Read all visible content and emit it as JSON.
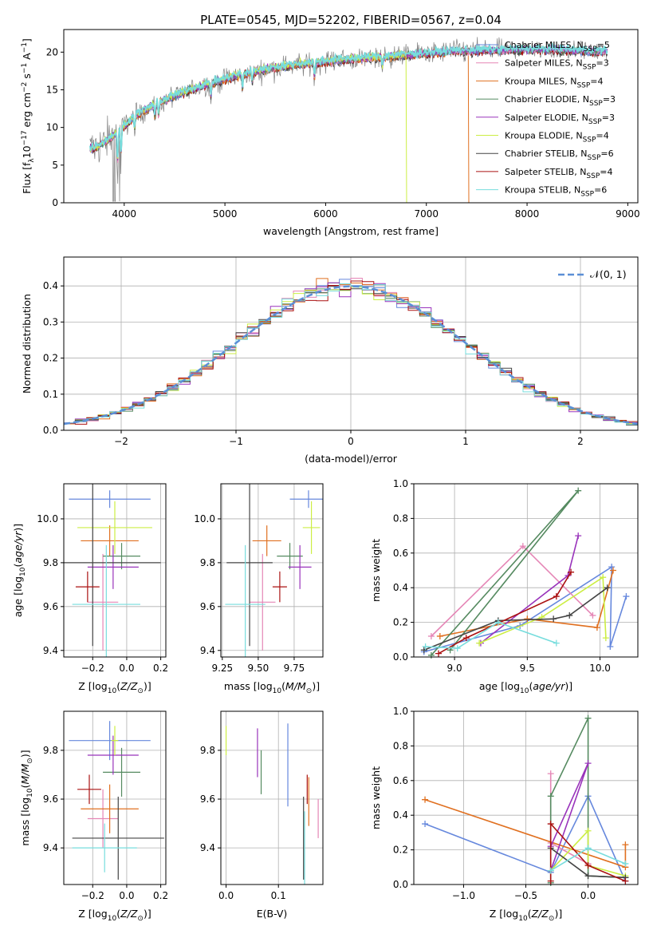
{
  "title": "PLATE=0545, MJD=52202, FIBERID=0567, z=0.04",
  "colors": {
    "Chabrier MILES": "#6688dd",
    "Salpeter MILES": "#e586b6",
    "Kroupa MILES": "#e07020",
    "Chabrier ELODIE": "#558a60",
    "Salpeter ELODIE": "#9933bb",
    "Kroupa ELODIE": "#ccee44",
    "Chabrier STELIB": "#444444",
    "Salpeter STELIB": "#aa1111",
    "Kroupa STELIB": "#77dddd"
  },
  "chart_data": [
    {
      "id": "spectrum",
      "type": "line",
      "xlabel": "wavelength [Angstrom, rest frame]",
      "ylabel": "Flux [f_λ10^-17 erg cm^-2 s^-1 A^-1]",
      "xlim": [
        3400,
        9100
      ],
      "ylim": [
        0,
        23
      ],
      "xticks": [
        4000,
        5000,
        6000,
        7000,
        8000,
        9000
      ],
      "yticks": [
        0,
        5,
        10,
        15,
        20
      ],
      "grid": false,
      "legend_position": "right",
      "legend": [
        {
          "model": "Chabrier MILES",
          "nssp": 5
        },
        {
          "model": "Salpeter MILES",
          "nssp": 3
        },
        {
          "model": "Kroupa MILES",
          "nssp": 4
        },
        {
          "model": "Chabrier ELODIE",
          "nssp": 3
        },
        {
          "model": "Salpeter ELODIE",
          "nssp": 3
        },
        {
          "model": "Kroupa ELODIE",
          "nssp": 4
        },
        {
          "model": "Chabrier STELIB",
          "nssp": 6
        },
        {
          "model": "Salpeter STELIB",
          "nssp": 4
        },
        {
          "model": "Kroupa STELIB",
          "nssp": 6
        }
      ],
      "continuum": {
        "x": [
          3650,
          3800,
          3950,
          4100,
          4300,
          4500,
          4700,
          4900,
          5100,
          5300,
          5500,
          5700,
          5900,
          6100,
          6300,
          6500,
          6700,
          6900,
          7100,
          7300,
          7500,
          7700,
          7900,
          8100,
          8300,
          8500,
          8800
        ],
        "y": [
          7.0,
          8.0,
          9.5,
          11.5,
          13.0,
          14.2,
          15.2,
          16.0,
          16.8,
          17.4,
          17.9,
          18.3,
          18.6,
          18.9,
          19.1,
          19.3,
          19.5,
          19.7,
          19.9,
          20.1,
          20.2,
          20.2,
          20.3,
          20.3,
          20.3,
          20.2,
          20.1
        ]
      },
      "model_dropouts": [
        {
          "model": "Kroupa ELODIE",
          "x_from": 6800,
          "y": 0
        },
        {
          "model": "Kroupa MILES",
          "x_from": 7420,
          "y": 0
        }
      ]
    },
    {
      "id": "residuals",
      "type": "histogram",
      "xlabel": "(data-model)/error",
      "ylabel": "Normed distribution",
      "xlim": [
        -2.5,
        2.5
      ],
      "ylim": [
        0,
        0.48
      ],
      "xticks": [
        -2,
        -1,
        0,
        1,
        2
      ],
      "yticks": [
        0.0,
        0.1,
        0.2,
        0.3,
        0.4
      ],
      "grid": true,
      "legend_position": "top-right",
      "legend": [
        "𝒩(0, 1)"
      ],
      "bin_width": 0.1,
      "reference_curve": "normal(0,1)"
    },
    {
      "id": "age-vs-Z",
      "type": "errorbar",
      "xlabel": "Z [log10(Z/Z☉)]",
      "ylabel": "age  [log10(age/yr)]",
      "xlim": [
        -0.37,
        0.23
      ],
      "ylim": [
        9.37,
        10.16
      ],
      "xticks": [
        -0.2,
        0.0,
        0.2
      ],
      "yticks": [
        9.4,
        9.6,
        9.8,
        10.0
      ],
      "grid": true,
      "points": [
        {
          "model": "Chabrier MILES",
          "x": -0.1,
          "xerr": 0.24,
          "y": 10.09,
          "yerr": 0.04
        },
        {
          "model": "Salpeter MILES",
          "x": -0.14,
          "xerr": 0.09,
          "y": 9.62,
          "yerr": 0.22
        },
        {
          "model": "Kroupa MILES",
          "x": -0.1,
          "xerr": 0.17,
          "y": 9.9,
          "yerr": 0.07
        },
        {
          "model": "Chabrier ELODIE",
          "x": -0.03,
          "xerr": 0.11,
          "y": 9.83,
          "yerr": 0.06
        },
        {
          "model": "Salpeter ELODIE",
          "x": -0.08,
          "xerr": 0.15,
          "y": 9.78,
          "yerr": 0.1
        },
        {
          "model": "Kroupa ELODIE",
          "x": -0.07,
          "xerr": 0.22,
          "y": 9.96,
          "yerr": 0.12
        },
        {
          "model": "Chabrier STELIB",
          "x": -0.2,
          "xerr": 0.4,
          "y": 9.8,
          "yerr": 0.38
        },
        {
          "model": "Salpeter STELIB",
          "x": -0.23,
          "xerr": 0.07,
          "y": 9.69,
          "yerr": 0.07
        },
        {
          "model": "Kroupa STELIB",
          "x": -0.12,
          "xerr": 0.2,
          "y": 9.61,
          "yerr": 0.27
        }
      ]
    },
    {
      "id": "age-vs-mass",
      "type": "errorbar",
      "xlabel": "mass [log10(M/M☉)]",
      "xlim": [
        9.24,
        9.95
      ],
      "ylim": [
        9.37,
        10.16
      ],
      "xticks": [
        9.25,
        9.5,
        9.75
      ],
      "yticks": [
        9.4,
        9.6,
        9.8,
        10.0
      ],
      "grid": true,
      "points": [
        {
          "model": "Chabrier MILES",
          "x": 9.85,
          "xerr": 0.13,
          "y": 10.09,
          "yerr": 0.04
        },
        {
          "model": "Salpeter MILES",
          "x": 9.53,
          "xerr": 0.09,
          "y": 9.62,
          "yerr": 0.22
        },
        {
          "model": "Kroupa MILES",
          "x": 9.56,
          "xerr": 0.1,
          "y": 9.9,
          "yerr": 0.07
        },
        {
          "model": "Chabrier ELODIE",
          "x": 9.72,
          "xerr": 0.09,
          "y": 9.83,
          "yerr": 0.06
        },
        {
          "model": "Salpeter ELODIE",
          "x": 9.79,
          "xerr": 0.08,
          "y": 9.78,
          "yerr": 0.1
        },
        {
          "model": "Kroupa ELODIE",
          "x": 9.87,
          "xerr": 0.06,
          "y": 9.96,
          "yerr": 0.12
        },
        {
          "model": "Chabrier STELIB",
          "x": 9.44,
          "xerr": 0.16,
          "y": 9.8,
          "yerr": 0.38
        },
        {
          "model": "Salpeter STELIB",
          "x": 9.65,
          "xerr": 0.05,
          "y": 9.69,
          "yerr": 0.07
        },
        {
          "model": "Kroupa STELIB",
          "x": 9.41,
          "xerr": 0.14,
          "y": 9.61,
          "yerr": 0.27
        }
      ]
    },
    {
      "id": "massweight-vs-age",
      "type": "line",
      "xlabel": "age  [log10(age/yr)]",
      "ylabel": "mass weight",
      "xlim": [
        8.72,
        10.26
      ],
      "ylim": [
        0,
        1
      ],
      "xticks": [
        9.0,
        9.5,
        10.0
      ],
      "yticks": [
        0.0,
        0.2,
        0.4,
        0.6,
        0.8,
        1.0
      ],
      "grid": true,
      "series": [
        {
          "model": "Chabrier MILES",
          "x": [
            8.79,
            9.45,
            10.08,
            10.07,
            10.18
          ],
          "y": [
            0.03,
            0.18,
            0.52,
            0.06,
            0.35
          ]
        },
        {
          "model": "Salpeter MILES",
          "x": [
            8.84,
            9.47,
            9.95
          ],
          "y": [
            0.12,
            0.64,
            0.24
          ]
        },
        {
          "model": "Kroupa MILES",
          "x": [
            8.9,
            9.5,
            9.98,
            10.09
          ],
          "y": [
            0.12,
            0.22,
            0.17,
            0.5
          ]
        },
        {
          "model": "Chabrier ELODIE",
          "x": [
            8.84,
            9.85,
            8.97
          ],
          "y": [
            0.01,
            0.96,
            0.04
          ]
        },
        {
          "model": "Salpeter ELODIE",
          "x": [
            9.18,
            9.78,
            9.85
          ],
          "y": [
            0.08,
            0.47,
            0.7
          ]
        },
        {
          "model": "Kroupa ELODIE",
          "x": [
            9.17,
            9.6,
            10.02,
            10.04
          ],
          "y": [
            0.08,
            0.23,
            0.46,
            0.11
          ]
        },
        {
          "model": "Chabrier STELIB",
          "x": [
            8.79,
            9.3,
            9.68,
            9.79,
            10.05
          ],
          "y": [
            0.04,
            0.21,
            0.22,
            0.24,
            0.4
          ]
        },
        {
          "model": "Salpeter STELIB",
          "x": [
            8.89,
            9.08,
            9.7,
            9.8
          ],
          "y": [
            0.02,
            0.11,
            0.35,
            0.49
          ]
        },
        {
          "model": "Kroupa STELIB",
          "x": [
            8.8,
            9.02,
            9.3,
            9.7
          ],
          "y": [
            0.06,
            0.05,
            0.2,
            0.08
          ]
        }
      ]
    },
    {
      "id": "mass-vs-Z",
      "type": "errorbar",
      "xlabel": "Z [log10(Z/Z☉)]",
      "ylabel": "mass [log10(M/M☉)]",
      "xlim": [
        -0.37,
        0.23
      ],
      "ylim": [
        9.25,
        9.96
      ],
      "xticks": [
        -0.2,
        0.0,
        0.2
      ],
      "yticks": [
        9.4,
        9.6,
        9.8
      ],
      "grid": true,
      "points": [
        {
          "model": "Chabrier MILES",
          "x": -0.1,
          "xerr": 0.24,
          "y": 9.84,
          "yerr": 0.08
        },
        {
          "model": "Salpeter MILES",
          "x": -0.14,
          "xerr": 0.09,
          "y": 9.52,
          "yerr": 0.12
        },
        {
          "model": "Kroupa MILES",
          "x": -0.1,
          "xerr": 0.17,
          "y": 9.56,
          "yerr": 0.1
        },
        {
          "model": "Chabrier ELODIE",
          "x": -0.03,
          "xerr": 0.11,
          "y": 9.71,
          "yerr": 0.1
        },
        {
          "model": "Salpeter ELODIE",
          "x": -0.08,
          "xerr": 0.15,
          "y": 9.78,
          "yerr": 0.08
        },
        {
          "model": "Kroupa ELODIE",
          "x": -0.07,
          "xerr": 0.02,
          "y": 9.84,
          "yerr": 0.06
        },
        {
          "model": "Chabrier STELIB",
          "x": -0.05,
          "xerr": 0.27,
          "y": 9.44,
          "yerr": 0.17
        },
        {
          "model": "Salpeter STELIB",
          "x": -0.22,
          "xerr": 0.07,
          "y": 9.64,
          "yerr": 0.06
        },
        {
          "model": "Kroupa STELIB",
          "x": -0.13,
          "xerr": 0.19,
          "y": 9.4,
          "yerr": 0.1
        }
      ]
    },
    {
      "id": "mass-vs-EBV",
      "type": "errorbar",
      "xlabel": "E(B-V)",
      "xlim": [
        -0.01,
        0.185
      ],
      "ylim": [
        9.25,
        9.96
      ],
      "xticks": [
        0.0,
        0.1
      ],
      "yticks": [
        9.4,
        9.6,
        9.8
      ],
      "grid": true,
      "points": [
        {
          "model": "Chabrier MILES",
          "x": 0.118,
          "y": 9.74,
          "yerr": 0.17
        },
        {
          "model": "Salpeter MILES",
          "x": 0.176,
          "y": 9.52,
          "yerr": 0.08
        },
        {
          "model": "Kroupa MILES",
          "x": 0.158,
          "y": 9.59,
          "yerr": 0.1
        },
        {
          "model": "Chabrier ELODIE",
          "x": 0.067,
          "y": 9.71,
          "yerr": 0.09
        },
        {
          "model": "Salpeter ELODIE",
          "x": 0.06,
          "y": 9.79,
          "yerr": 0.1
        },
        {
          "model": "Kroupa ELODIE",
          "x": 0.0,
          "y": 9.84,
          "yerr": 0.06
        },
        {
          "model": "Chabrier STELIB",
          "x": 0.148,
          "y": 9.44,
          "yerr": 0.17
        },
        {
          "model": "Salpeter STELIB",
          "x": 0.155,
          "y": 9.64,
          "yerr": 0.06
        },
        {
          "model": "Kroupa STELIB",
          "x": 0.15,
          "y": 9.4,
          "yerr": 0.15
        }
      ]
    },
    {
      "id": "massweight-vs-Z",
      "type": "line",
      "xlabel": "Z [log10(Z/Z☉)]",
      "ylabel": "mass weight",
      "xlim": [
        -1.4,
        0.4
      ],
      "ylim": [
        0,
        1
      ],
      "xticks": [
        -1.0,
        -0.5,
        0.0
      ],
      "yticks": [
        0.0,
        0.2,
        0.4,
        0.6,
        0.8,
        1.0
      ],
      "grid": true,
      "series": [
        {
          "model": "Chabrier MILES",
          "x": [
            -1.31,
            -0.3,
            0.0,
            0.3
          ],
          "y": [
            0.35,
            0.07,
            0.51,
            0.02
          ]
        },
        {
          "model": "Salpeter MILES",
          "x": [
            -0.3,
            -0.3,
            0.0
          ],
          "y": [
            0.64,
            0.24,
            0.12
          ]
        },
        {
          "model": "Kroupa MILES",
          "x": [
            -1.31,
            0.3,
            0.3
          ],
          "y": [
            0.49,
            0.1,
            0.23
          ]
        },
        {
          "model": "Chabrier ELODIE",
          "x": [
            -0.3,
            -0.3,
            0.0,
            0.0,
            0.3
          ],
          "y": [
            0.01,
            0.51,
            0.96,
            0.05,
            0.04
          ]
        },
        {
          "model": "Salpeter ELODIE",
          "x": [
            -0.3,
            0.0,
            -0.3
          ],
          "y": [
            0.22,
            0.7,
            0.08
          ]
        },
        {
          "model": "Kroupa ELODIE",
          "x": [
            -0.3,
            0.0,
            0.0,
            0.3
          ],
          "y": [
            0.08,
            0.31,
            0.11,
            0.05
          ]
        },
        {
          "model": "Chabrier STELIB",
          "x": [
            -0.3,
            0.0,
            0.3
          ],
          "y": [
            0.21,
            0.05,
            0.04
          ]
        },
        {
          "model": "Salpeter STELIB",
          "x": [
            -0.3,
            -0.3,
            0.0,
            0.3
          ],
          "y": [
            0.02,
            0.35,
            0.11,
            0.02
          ]
        },
        {
          "model": "Kroupa STELIB",
          "x": [
            -0.3,
            0.0,
            0.3
          ],
          "y": [
            0.08,
            0.21,
            0.12
          ]
        }
      ]
    }
  ]
}
